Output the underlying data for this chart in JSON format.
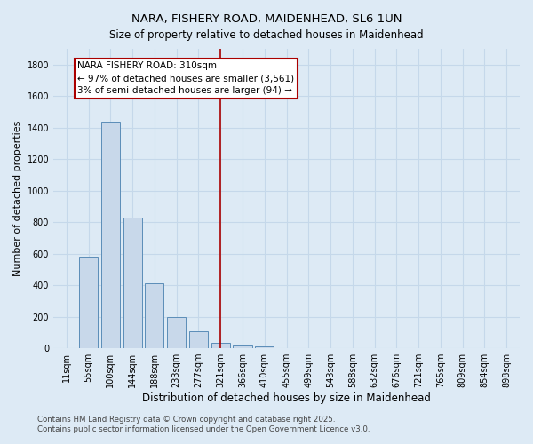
{
  "title": "NARA, FISHERY ROAD, MAIDENHEAD, SL6 1UN",
  "subtitle": "Size of property relative to detached houses in Maidenhead",
  "xlabel": "Distribution of detached houses by size in Maidenhead",
  "ylabel": "Number of detached properties",
  "categories": [
    "11sqm",
    "55sqm",
    "100sqm",
    "144sqm",
    "188sqm",
    "233sqm",
    "277sqm",
    "321sqm",
    "366sqm",
    "410sqm",
    "455sqm",
    "499sqm",
    "543sqm",
    "588sqm",
    "632sqm",
    "676sqm",
    "721sqm",
    "765sqm",
    "809sqm",
    "854sqm",
    "898sqm"
  ],
  "values": [
    0,
    580,
    1440,
    830,
    410,
    200,
    105,
    35,
    20,
    10,
    0,
    0,
    0,
    0,
    0,
    0,
    0,
    0,
    0,
    0,
    0
  ],
  "bar_color": "#c8d8ea",
  "bar_edge_color": "#5b8db8",
  "vline_x": 7,
  "vline_color": "#aa0000",
  "annotation_text": "NARA FISHERY ROAD: 310sqm\n← 97% of detached houses are smaller (3,561)\n3% of semi-detached houses are larger (94) →",
  "annotation_box_facecolor": "#ffffff",
  "annotation_box_edgecolor": "#aa0000",
  "ylim": [
    0,
    1900
  ],
  "yticks": [
    0,
    200,
    400,
    600,
    800,
    1000,
    1200,
    1400,
    1600,
    1800
  ],
  "grid_color": "#c5d8ea",
  "bg_color": "#ddeaf5",
  "plot_bg_color": "#ddeaf5",
  "title_fontsize": 9.5,
  "subtitle_fontsize": 8.5,
  "tick_fontsize": 7,
  "ylabel_fontsize": 8,
  "xlabel_fontsize": 8.5,
  "footer_line1": "Contains HM Land Registry data © Crown copyright and database right 2025.",
  "footer_line2": "Contains public sector information licensed under the Open Government Licence v3.0.",
  "footer_fontsize": 6.2,
  "footer_color": "#444444"
}
